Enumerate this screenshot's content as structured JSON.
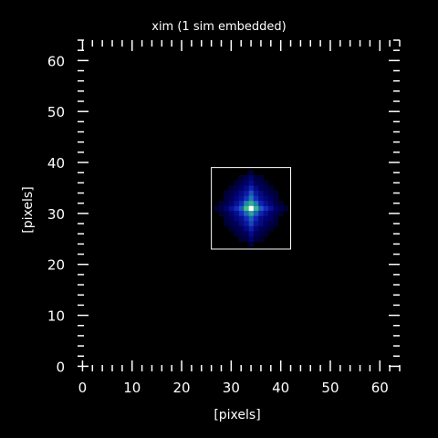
{
  "chart_data": {
    "type": "heatmap",
    "title": "xim (1 sim embedded)",
    "xlabel": "[pixels]",
    "ylabel": "[pixels]",
    "xlim": [
      -1,
      64
    ],
    "ylim": [
      -1,
      64
    ],
    "xticks": [
      0,
      10,
      20,
      30,
      40,
      50,
      60
    ],
    "yticks": [
      0,
      10,
      20,
      30,
      40,
      50,
      60
    ],
    "colormap": "black-blue-green-yellow-white",
    "background": "#000000",
    "box": {
      "x0": 26,
      "y0": 23,
      "x1": 42,
      "y1": 39
    },
    "cells": [
      [
        34,
        31,
        1.0
      ],
      [
        33,
        31,
        0.55
      ],
      [
        35,
        31,
        0.5
      ],
      [
        34,
        32,
        0.5
      ],
      [
        34,
        30,
        0.45
      ],
      [
        33,
        32,
        0.38
      ],
      [
        35,
        32,
        0.35
      ],
      [
        33,
        30,
        0.32
      ],
      [
        35,
        30,
        0.3
      ],
      [
        34,
        33,
        0.35
      ],
      [
        34,
        29,
        0.3
      ],
      [
        32,
        31,
        0.3
      ],
      [
        36,
        31,
        0.3
      ],
      [
        34,
        34,
        0.28
      ],
      [
        34,
        28,
        0.25
      ],
      [
        31,
        31,
        0.2
      ],
      [
        37,
        31,
        0.2
      ],
      [
        32,
        32,
        0.2
      ],
      [
        36,
        32,
        0.18
      ],
      [
        32,
        30,
        0.2
      ],
      [
        36,
        30,
        0.18
      ],
      [
        33,
        33,
        0.22
      ],
      [
        35,
        33,
        0.2
      ],
      [
        33,
        29,
        0.2
      ],
      [
        35,
        29,
        0.18
      ],
      [
        34,
        35,
        0.18
      ],
      [
        34,
        27,
        0.16
      ],
      [
        33,
        34,
        0.15
      ],
      [
        35,
        34,
        0.14
      ],
      [
        33,
        28,
        0.14
      ],
      [
        35,
        28,
        0.13
      ],
      [
        30,
        31,
        0.12
      ],
      [
        38,
        31,
        0.12
      ],
      [
        31,
        32,
        0.12
      ],
      [
        37,
        32,
        0.11
      ],
      [
        31,
        30,
        0.11
      ],
      [
        37,
        30,
        0.11
      ],
      [
        32,
        33,
        0.12
      ],
      [
        36,
        33,
        0.11
      ],
      [
        32,
        29,
        0.11
      ],
      [
        36,
        29,
        0.1
      ],
      [
        32,
        34,
        0.1
      ],
      [
        36,
        34,
        0.09
      ],
      [
        32,
        28,
        0.09
      ],
      [
        36,
        28,
        0.09
      ],
      [
        33,
        35,
        0.1
      ],
      [
        35,
        35,
        0.09
      ],
      [
        33,
        27,
        0.09
      ],
      [
        35,
        27,
        0.08
      ],
      [
        34,
        36,
        0.1
      ],
      [
        34,
        26,
        0.1
      ],
      [
        34,
        37,
        0.07
      ],
      [
        34,
        25,
        0.07
      ],
      [
        31,
        33,
        0.08
      ],
      [
        37,
        33,
        0.08
      ],
      [
        31,
        29,
        0.08
      ],
      [
        37,
        29,
        0.07
      ],
      [
        30,
        32,
        0.07
      ],
      [
        38,
        32,
        0.07
      ],
      [
        30,
        30,
        0.07
      ],
      [
        38,
        30,
        0.06
      ],
      [
        29,
        31,
        0.07
      ],
      [
        39,
        31,
        0.06
      ],
      [
        30,
        33,
        0.05
      ],
      [
        38,
        33,
        0.05
      ],
      [
        30,
        29,
        0.05
      ],
      [
        38,
        29,
        0.05
      ],
      [
        31,
        34,
        0.06
      ],
      [
        37,
        34,
        0.05
      ],
      [
        31,
        28,
        0.05
      ],
      [
        37,
        28,
        0.05
      ],
      [
        32,
        35,
        0.06
      ],
      [
        36,
        35,
        0.05
      ],
      [
        32,
        27,
        0.05
      ],
      [
        36,
        27,
        0.05
      ],
      [
        33,
        36,
        0.06
      ],
      [
        35,
        36,
        0.05
      ],
      [
        33,
        26,
        0.05
      ],
      [
        35,
        26,
        0.05
      ],
      [
        32,
        36,
        0.04
      ],
      [
        36,
        36,
        0.04
      ],
      [
        32,
        26,
        0.04
      ],
      [
        36,
        26,
        0.04
      ],
      [
        29,
        32,
        0.04
      ],
      [
        39,
        32,
        0.04
      ],
      [
        29,
        30,
        0.04
      ],
      [
        39,
        30,
        0.04
      ],
      [
        28,
        31,
        0.04
      ],
      [
        40,
        31,
        0.04
      ],
      [
        31,
        35,
        0.04
      ],
      [
        37,
        35,
        0.04
      ],
      [
        31,
        27,
        0.04
      ],
      [
        37,
        27,
        0.04
      ],
      [
        30,
        34,
        0.04
      ],
      [
        38,
        34,
        0.04
      ],
      [
        30,
        28,
        0.04
      ],
      [
        38,
        28,
        0.04
      ],
      [
        29,
        33,
        0.035
      ],
      [
        39,
        33,
        0.035
      ],
      [
        29,
        29,
        0.035
      ],
      [
        39,
        29,
        0.035
      ],
      [
        33,
        37,
        0.04
      ],
      [
        35,
        37,
        0.035
      ],
      [
        33,
        25,
        0.035
      ],
      [
        35,
        25,
        0.035
      ],
      [
        34,
        38,
        0.035
      ],
      [
        34,
        24,
        0.035
      ],
      [
        27,
        31,
        0.03
      ],
      [
        41,
        31,
        0.03
      ],
      [
        28,
        32,
        0.03
      ],
      [
        40,
        32,
        0.03
      ],
      [
        28,
        30,
        0.03
      ],
      [
        40,
        30,
        0.03
      ],
      [
        32,
        37,
        0.03
      ],
      [
        36,
        37,
        0.03
      ],
      [
        32,
        25,
        0.03
      ],
      [
        36,
        25,
        0.03
      ],
      [
        30,
        35,
        0.03
      ],
      [
        38,
        35,
        0.03
      ],
      [
        30,
        27,
        0.03
      ],
      [
        38,
        27,
        0.03
      ],
      [
        29,
        34,
        0.03
      ],
      [
        39,
        34,
        0.03
      ],
      [
        29,
        28,
        0.03
      ],
      [
        39,
        28,
        0.03
      ],
      [
        31,
        36,
        0.03
      ],
      [
        37,
        36,
        0.03
      ],
      [
        31,
        26,
        0.03
      ],
      [
        37,
        26,
        0.03
      ]
    ]
  }
}
